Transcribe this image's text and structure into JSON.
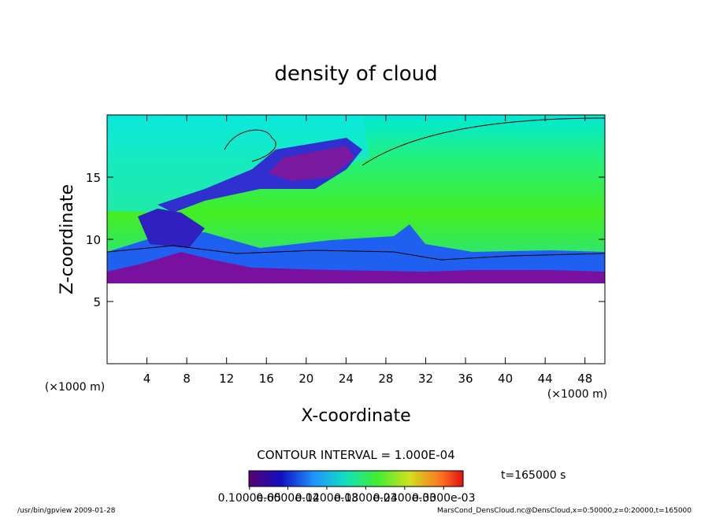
{
  "chart_data": {
    "type": "contour",
    "title": "density of cloud",
    "x_label": "X-coordinate",
    "y_label": "Z-coordinate",
    "x_unit": "(×1000 m)",
    "y_unit": "(×1000 m)",
    "xlim": [
      0,
      50
    ],
    "xticks": [
      4,
      8,
      12,
      16,
      20,
      24,
      28,
      32,
      36,
      40,
      44,
      48
    ],
    "ylim": [
      0,
      20
    ],
    "yticks": [
      5,
      10,
      15
    ],
    "contour_interval": "CONTOUR INTERVAL = 1.000E-04",
    "time_label": "t=165000 s",
    "colorbar": {
      "lim": [
        0,
        0.00033
      ],
      "ticks": [
        {
          "value": 1e-06,
          "label": "0.1000e-05"
        },
        {
          "value": 6e-05,
          "label": "0.6000e-04"
        },
        {
          "value": 0.00012,
          "label": "0.1200e-03"
        },
        {
          "value": 0.00018,
          "label": "0.1800e-03"
        },
        {
          "value": 0.00024,
          "label": "0.2400e-03"
        },
        {
          "value": 0.0003,
          "label": "0.3000e-03"
        }
      ]
    },
    "footer_left": "/usr/bin/gpview  2009-01-28",
    "footer_right": "MarsCond_DensCloud.nc@DensCloud,x=0:50000,z=0:20000,t=165000"
  }
}
